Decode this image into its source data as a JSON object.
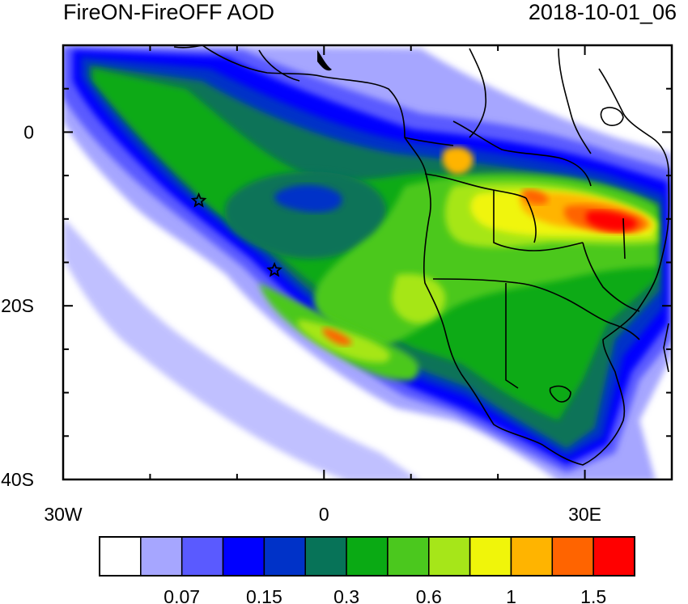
{
  "title": {
    "left": "FireON-FireOFF AOD",
    "right": "2018-10-01_06"
  },
  "map": {
    "lon_range": [
      -30,
      40
    ],
    "lat_range": [
      -40,
      10
    ],
    "lon_ticks": [
      {
        "value": -30,
        "label": "30W"
      },
      {
        "value": 0,
        "label": "0"
      },
      {
        "value": 30,
        "label": "30E"
      }
    ],
    "lat_ticks": [
      {
        "value": 0,
        "label": "0"
      },
      {
        "value": -20,
        "label": "20S"
      },
      {
        "value": -40,
        "label": "40S"
      }
    ],
    "markers": [
      {
        "name": "star-marker-1",
        "lon": -14.4,
        "lat": -7.9
      },
      {
        "name": "star-marker-2",
        "lon": -5.7,
        "lat": -15.9
      }
    ]
  },
  "colorbar": {
    "colors": [
      "#ffffff",
      "#a6a6ff",
      "#5a5aff",
      "#0000ff",
      "#0032c8",
      "#077358",
      "#0aaa14",
      "#4bc81e",
      "#a6e619",
      "#f0f50a",
      "#ffb400",
      "#ff6400",
      "#ff0000"
    ],
    "tick_labels": [
      "0.07",
      "0.15",
      "0.3",
      "0.6",
      "1",
      "1.5"
    ],
    "tick_after_box": [
      2,
      4,
      6,
      8,
      10,
      12
    ]
  }
}
